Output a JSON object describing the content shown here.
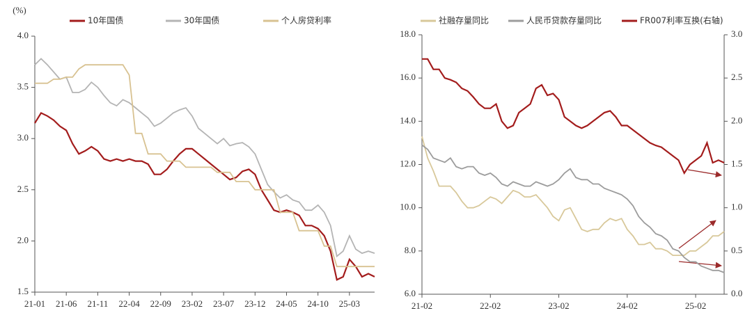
{
  "chart_data": [
    {
      "type": "line",
      "y_label": "(%)",
      "categories": [
        "21-01",
        null,
        null,
        null,
        null,
        "21-06",
        null,
        null,
        null,
        null,
        "21-11",
        null,
        null,
        null,
        null,
        "22-04",
        null,
        null,
        null,
        null,
        "22-09",
        null,
        null,
        null,
        null,
        "23-02",
        null,
        null,
        null,
        null,
        "23-07",
        null,
        null,
        null,
        null,
        "23-12",
        null,
        null,
        null,
        null,
        "24-05",
        null,
        null,
        null,
        null,
        "24-10",
        null,
        null,
        null,
        null,
        "25-03",
        null,
        null,
        null,
        null
      ],
      "ylim": [
        1.5,
        4.0
      ],
      "yticks": [
        1.5,
        {
          "value": 2,
          "label": "2.0"
        },
        2.5,
        {
          "value": 3,
          "label": "3.0"
        },
        3.5,
        {
          "value": 4,
          "label": "4.0"
        }
      ],
      "grid": false,
      "series": [
        {
          "name": "10年国债",
          "color": "#a31c1c",
          "values": [
            3.15,
            3.25,
            3.22,
            3.18,
            3.12,
            3.08,
            2.95,
            2.85,
            2.88,
            2.92,
            2.88,
            2.8,
            2.78,
            2.8,
            2.78,
            2.8,
            2.78,
            2.78,
            2.75,
            2.65,
            2.65,
            2.7,
            2.78,
            2.85,
            2.9,
            2.9,
            2.85,
            2.8,
            2.75,
            2.7,
            2.65,
            2.6,
            2.62,
            2.68,
            2.7,
            2.65,
            2.5,
            2.4,
            2.3,
            2.28,
            2.3,
            2.28,
            2.25,
            2.15,
            2.15,
            2.12,
            2.05,
            1.9,
            1.62,
            1.65,
            1.82,
            1.75,
            1.65,
            1.68,
            1.65
          ]
        },
        {
          "name": "30年国债",
          "color": "#b4b4b4",
          "values": [
            3.72,
            3.78,
            3.72,
            3.65,
            3.58,
            3.6,
            3.45,
            3.45,
            3.48,
            3.55,
            3.5,
            3.42,
            3.35,
            3.32,
            3.38,
            3.35,
            3.3,
            3.25,
            3.2,
            3.12,
            3.15,
            3.2,
            3.25,
            3.28,
            3.3,
            3.22,
            3.1,
            3.05,
            3.0,
            2.95,
            3.0,
            2.93,
            2.95,
            2.96,
            2.92,
            2.85,
            2.7,
            2.55,
            2.48,
            2.42,
            2.45,
            2.4,
            2.38,
            2.3,
            2.3,
            2.35,
            2.28,
            2.15,
            1.85,
            1.9,
            2.05,
            1.92,
            1.88,
            1.9,
            1.88
          ]
        },
        {
          "name": "个人房贷利率",
          "color": "#d8c291",
          "values": [
            3.54,
            3.54,
            3.54,
            3.58,
            3.58,
            3.6,
            3.6,
            3.68,
            3.72,
            3.72,
            3.72,
            3.72,
            3.72,
            3.72,
            3.72,
            3.62,
            3.05,
            3.05,
            2.85,
            2.85,
            2.85,
            2.78,
            2.78,
            2.78,
            2.72,
            2.72,
            2.72,
            2.72,
            2.72,
            2.67,
            2.67,
            2.67,
            2.58,
            2.58,
            2.58,
            2.5,
            2.5,
            2.5,
            2.5,
            2.28,
            2.28,
            2.28,
            2.1,
            2.1,
            2.1,
            2.1,
            1.95,
            1.95,
            1.75,
            1.75,
            1.75,
            1.75,
            1.75,
            1.75,
            1.75
          ]
        }
      ]
    },
    {
      "type": "line",
      "categories": [
        "21-02",
        null,
        null,
        null,
        null,
        null,
        null,
        null,
        null,
        null,
        null,
        null,
        "22-02",
        null,
        null,
        null,
        null,
        null,
        null,
        null,
        null,
        null,
        null,
        null,
        "23-02",
        null,
        null,
        null,
        null,
        null,
        null,
        null,
        null,
        null,
        null,
        null,
        "24-02",
        null,
        null,
        null,
        null,
        null,
        null,
        null,
        null,
        null,
        null,
        null,
        "25-02",
        null,
        null,
        null,
        null,
        null
      ],
      "ylim": [
        6,
        18
      ],
      "yticks": [
        {
          "value": 6,
          "label": "6.0"
        },
        {
          "value": 8,
          "label": "8.0"
        },
        {
          "value": 10,
          "label": "10.0"
        },
        {
          "value": 12,
          "label": "12.0"
        },
        {
          "value": 14,
          "label": "14.0"
        },
        {
          "value": 16,
          "label": "16.0"
        },
        {
          "value": 18,
          "label": "18.0"
        }
      ],
      "y2lim": [
        0,
        3
      ],
      "y2ticks": [
        {
          "value": 0,
          "label": "0.0"
        },
        0.5,
        {
          "value": 1,
          "label": "1.0"
        },
        1.5,
        {
          "value": 2,
          "label": "2.0"
        },
        2.5,
        {
          "value": 3,
          "label": "3.0"
        }
      ],
      "grid": false,
      "series": [
        {
          "name": "社融存量同比",
          "color": "#d8c89a",
          "values": [
            13.3,
            12.3,
            11.7,
            11.0,
            11.0,
            11.0,
            10.7,
            10.3,
            10.0,
            10.0,
            10.1,
            10.3,
            10.5,
            10.4,
            10.2,
            10.5,
            10.8,
            10.7,
            10.5,
            10.5,
            10.6,
            10.3,
            10.0,
            9.6,
            9.4,
            9.9,
            10.0,
            9.5,
            9.0,
            8.9,
            9.0,
            9.0,
            9.3,
            9.5,
            9.4,
            9.5,
            9.0,
            8.7,
            8.3,
            8.3,
            8.4,
            8.1,
            8.1,
            8.0,
            7.8,
            7.8,
            7.8,
            8.0,
            8.0,
            8.2,
            8.4,
            8.7,
            8.7,
            8.9
          ]
        },
        {
          "name": "人民币贷款存量同比",
          "color": "#9c9c9c",
          "values": [
            12.9,
            12.7,
            12.3,
            12.2,
            12.1,
            12.3,
            11.9,
            11.8,
            11.9,
            11.9,
            11.6,
            11.5,
            11.6,
            11.4,
            11.1,
            11.0,
            11.2,
            11.1,
            11.0,
            11.0,
            11.2,
            11.1,
            11.0,
            11.1,
            11.3,
            11.6,
            11.8,
            11.4,
            11.3,
            11.3,
            11.1,
            11.1,
            10.9,
            10.8,
            10.7,
            10.6,
            10.4,
            10.1,
            9.6,
            9.3,
            9.1,
            8.8,
            8.7,
            8.5,
            8.1,
            8.0,
            7.7,
            7.5,
            7.5,
            7.3,
            7.2,
            7.1,
            7.1,
            7.0
          ]
        },
        {
          "name": "FR007利率互换(右轴)",
          "color": "#a31c1c",
          "axis": "y2",
          "values": [
            2.72,
            2.72,
            2.6,
            2.6,
            2.5,
            2.48,
            2.45,
            2.38,
            2.35,
            2.28,
            2.2,
            2.15,
            2.15,
            2.2,
            2.0,
            1.92,
            1.95,
            2.1,
            2.15,
            2.2,
            2.38,
            2.42,
            2.3,
            2.32,
            2.25,
            2.05,
            2.0,
            1.95,
            1.92,
            1.95,
            2.0,
            2.05,
            2.1,
            2.12,
            2.05,
            1.95,
            1.95,
            1.9,
            1.85,
            1.8,
            1.75,
            1.72,
            1.7,
            1.65,
            1.6,
            1.55,
            1.4,
            1.5,
            1.55,
            1.6,
            1.75,
            1.52,
            1.55,
            1.52
          ]
        }
      ]
    }
  ]
}
